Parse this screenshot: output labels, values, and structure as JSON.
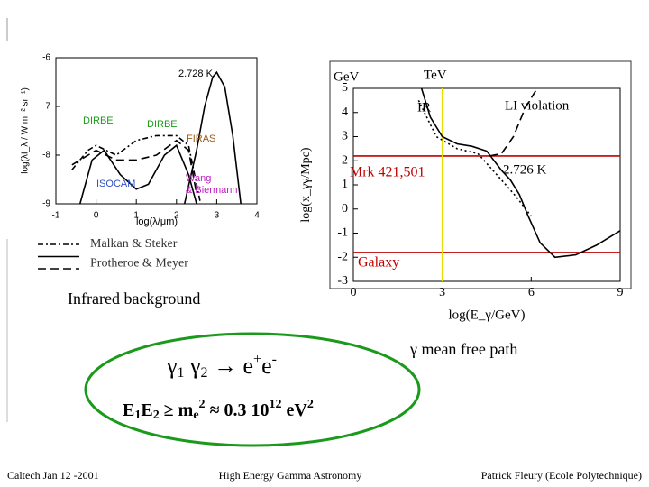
{
  "chart_data": [
    {
      "type": "line",
      "xlim": [
        -1,
        4
      ],
      "xticks": [
        -1,
        0,
        1,
        2,
        3,
        4
      ],
      "ylim": [
        -9,
        -6
      ],
      "yticks": [
        -6,
        -7,
        -8,
        -9
      ],
      "x_label": "log(λ/μm)",
      "y_label": "log(λI_λ / W m⁻² sr⁻¹)",
      "caption": "Infrared background",
      "series": [
        {
          "name": "Malkan & Steker",
          "color": "#000000",
          "style": "dashdot",
          "x": [
            -0.6,
            -0.2,
            0,
            0.5,
            1,
            1.5,
            2,
            2.3,
            2.6
          ],
          "values": [
            -8.3,
            -7.9,
            -7.8,
            -8.0,
            -7.7,
            -7.6,
            -7.6,
            -7.8,
            -9
          ]
        },
        {
          "name": "Protheroe & Meyer",
          "color": "#000000",
          "style": "solid",
          "x": [
            -0.4,
            -0.1,
            0.2,
            0.6,
            1,
            1.3,
            1.7,
            2,
            2.3,
            2.5
          ],
          "values": [
            -9,
            -8.1,
            -7.9,
            -8.4,
            -8.7,
            -8.6,
            -8.0,
            -7.8,
            -8.4,
            -9
          ]
        },
        {
          "color": "#000000",
          "style": "dashed",
          "x": [
            -0.6,
            0,
            0.5,
            1,
            1.5,
            2,
            2.3,
            2.5
          ],
          "values": [
            -8.2,
            -7.9,
            -8.1,
            -8.1,
            -8.0,
            -7.7,
            -7.9,
            -8.8
          ]
        },
        {
          "color": "#000000",
          "style": "solid",
          "legend": false,
          "x": [
            2.2,
            2.5,
            2.7,
            2.9,
            3.0,
            3.2,
            3.4,
            3.5,
            3.6
          ],
          "values": [
            -9,
            -7.9,
            -7,
            -6.4,
            -6.3,
            -6.6,
            -7.6,
            -8.3,
            -9
          ]
        }
      ],
      "annotations": [
        {
          "text": "2.728 K",
          "color": "#000000"
        },
        {
          "text": "DIRBE",
          "color": "#1a9a1a"
        },
        {
          "text": "DIRBE",
          "color": "#1a9a1a"
        },
        {
          "text": "FIRAS",
          "color": "#9a5a1a"
        },
        {
          "text": "ISOCAM",
          "color": "#3050c0"
        },
        {
          "text": "Wang",
          "color": "#c020c0"
        },
        {
          "text": "& Biermann",
          "color": "#c020c0"
        }
      ]
    },
    {
      "type": "line",
      "xlim": [
        0,
        9
      ],
      "xticks": [
        0,
        3,
        6,
        9
      ],
      "ylim": [
        -3,
        5
      ],
      "yticks": [
        5,
        4,
        3,
        2,
        1,
        0,
        -1,
        -2,
        -3
      ],
      "x_label": "log(E_γ/GeV)",
      "y_label": "log(x_γγ/Mpc)",
      "caption": "γ mean free path",
      "series": [
        {
          "name": "Mrk 421,501",
          "color": "#c00000",
          "style": "solid",
          "x": [
            0,
            9
          ],
          "values": [
            2.2,
            2.2
          ]
        },
        {
          "name": "Galaxy",
          "color": "#c00000",
          "style": "solid",
          "x": [
            0,
            9
          ],
          "values": [
            -1.8,
            -1.8
          ]
        },
        {
          "color": "#e8e000",
          "style": "solid",
          "x": [
            3,
            3
          ],
          "values": [
            -3,
            5
          ]
        },
        {
          "color": "#000000",
          "style": "dotted",
          "x": [
            2.2,
            2.8,
            3.5,
            4.2,
            5,
            5.5,
            6
          ],
          "values": [
            4.5,
            3,
            2.5,
            2.3,
            1.2,
            0.5,
            -0.3
          ]
        },
        {
          "color": "#000000",
          "style": "solid",
          "x": [
            2.3,
            2.6,
            3,
            3.5,
            4,
            4.5,
            5,
            5.3,
            5.6,
            5.9,
            6.3,
            6.8,
            7.5,
            8.2,
            9
          ],
          "values": [
            5,
            3.8,
            3,
            2.7,
            2.6,
            2.4,
            1.6,
            1.2,
            0.6,
            -0.3,
            -1.4,
            -2,
            -1.9,
            -1.5,
            -0.9
          ]
        },
        {
          "color": "#000000",
          "style": "dashed",
          "x": [
            4.6,
            5,
            5.4,
            5.8,
            6.2
          ],
          "values": [
            2.2,
            2.3,
            3,
            4.2,
            5
          ]
        }
      ],
      "annotations": [
        {
          "text": "GeV",
          "color": "#000000"
        },
        {
          "text": "TeV",
          "color": "#000000"
        },
        {
          "text": "IR",
          "color": "#000000"
        },
        {
          "text": "LI violation",
          "color": "#000000"
        },
        {
          "text": "2.726 K",
          "color": "#000000"
        }
      ]
    }
  ],
  "formula": {
    "line1": [
      "γ",
      "1",
      " γ",
      "2",
      " → e",
      "+",
      "e",
      "-"
    ],
    "line2": [
      "E",
      "1",
      "E",
      "2",
      " ≥ m",
      "e",
      "2",
      " ≈ 0.3 10",
      "12",
      " eV",
      "2"
    ]
  },
  "footer": {
    "left": "Caltech Jan 12 -2001",
    "center": "High Energy Gamma Astronomy",
    "right": "Patrick Fleury (Ecole Polytechnique)"
  }
}
